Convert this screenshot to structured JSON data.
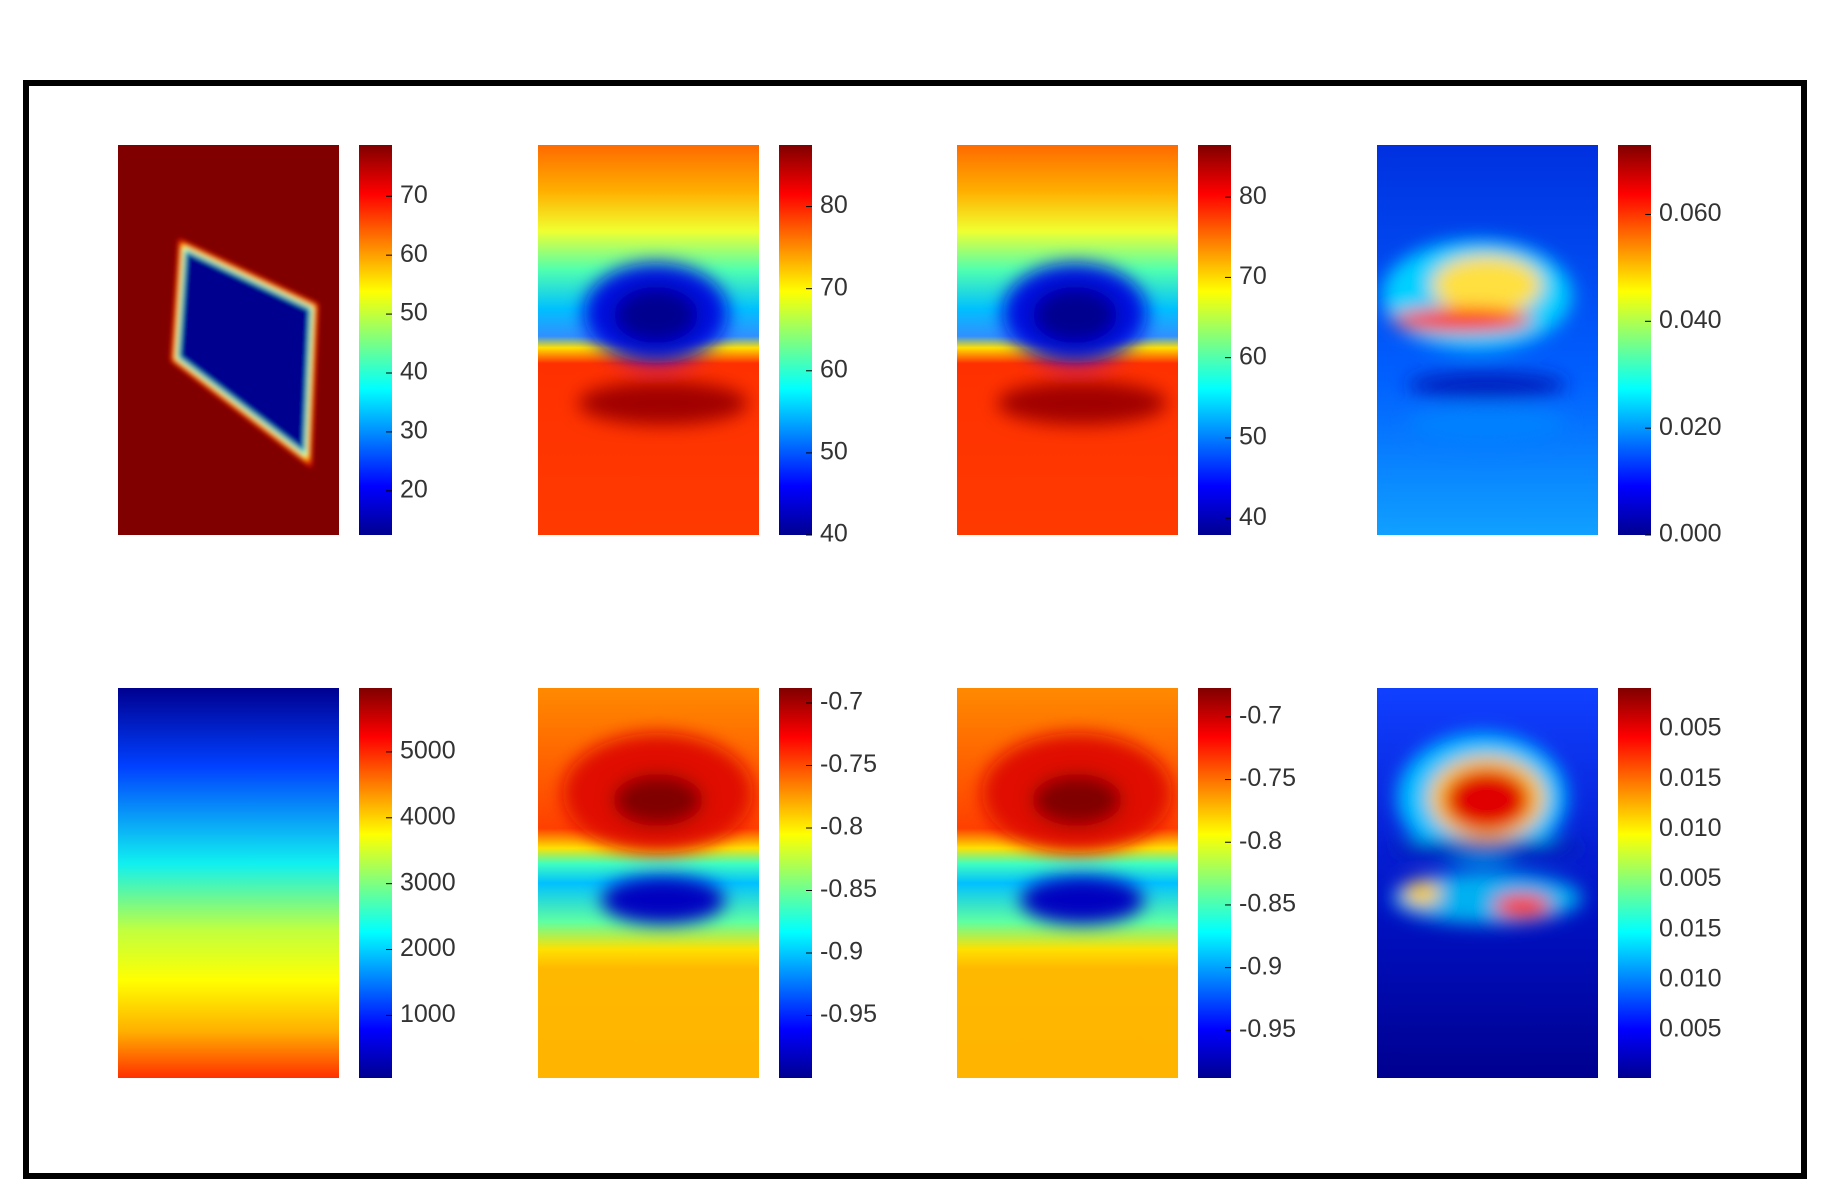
{
  "chart_data": [
    {
      "type": "heatmap",
      "clim": [
        12.5,
        78.7
      ],
      "cticks": [
        20,
        30,
        40,
        50,
        60,
        70
      ]
    },
    {
      "type": "heatmap",
      "clim": [
        40,
        87.5
      ],
      "cticks": [
        40,
        50,
        60,
        70,
        80
      ]
    },
    {
      "type": "heatmap",
      "clim": [
        37.9,
        86.5
      ],
      "cticks": [
        40,
        50,
        60,
        70,
        80
      ]
    },
    {
      "type": "heatmap",
      "clim": [
        0,
        0.073
      ],
      "cticks": [
        {
          "value": 0,
          "label": "0.000"
        },
        {
          "value": 0.02,
          "label": "0.020"
        },
        {
          "value": 0.04,
          "label": "0.040"
        },
        {
          "value": 0.06,
          "label": "0.060"
        }
      ]
    },
    {
      "type": "heatmap",
      "clim": [
        50,
        5970
      ],
      "cticks": [
        1000,
        2000,
        3000,
        4000,
        5000
      ]
    },
    {
      "type": "heatmap",
      "clim": [
        -1,
        -0.688
      ],
      "cticks": [
        -0.95,
        -0.9,
        -0.85,
        -0.8,
        -0.75,
        -0.7
      ]
    },
    {
      "type": "heatmap",
      "clim": [
        -0.988,
        -0.677
      ],
      "cticks": [
        -0.95,
        -0.9,
        -0.85,
        -0.8,
        -0.75,
        -0.7
      ]
    },
    {
      "type": "heatmap",
      "clabels": [
        "0.005",
        "0.015",
        "0.010",
        "0.005",
        "0.015",
        "0.010",
        "0.005"
      ]
    }
  ]
}
